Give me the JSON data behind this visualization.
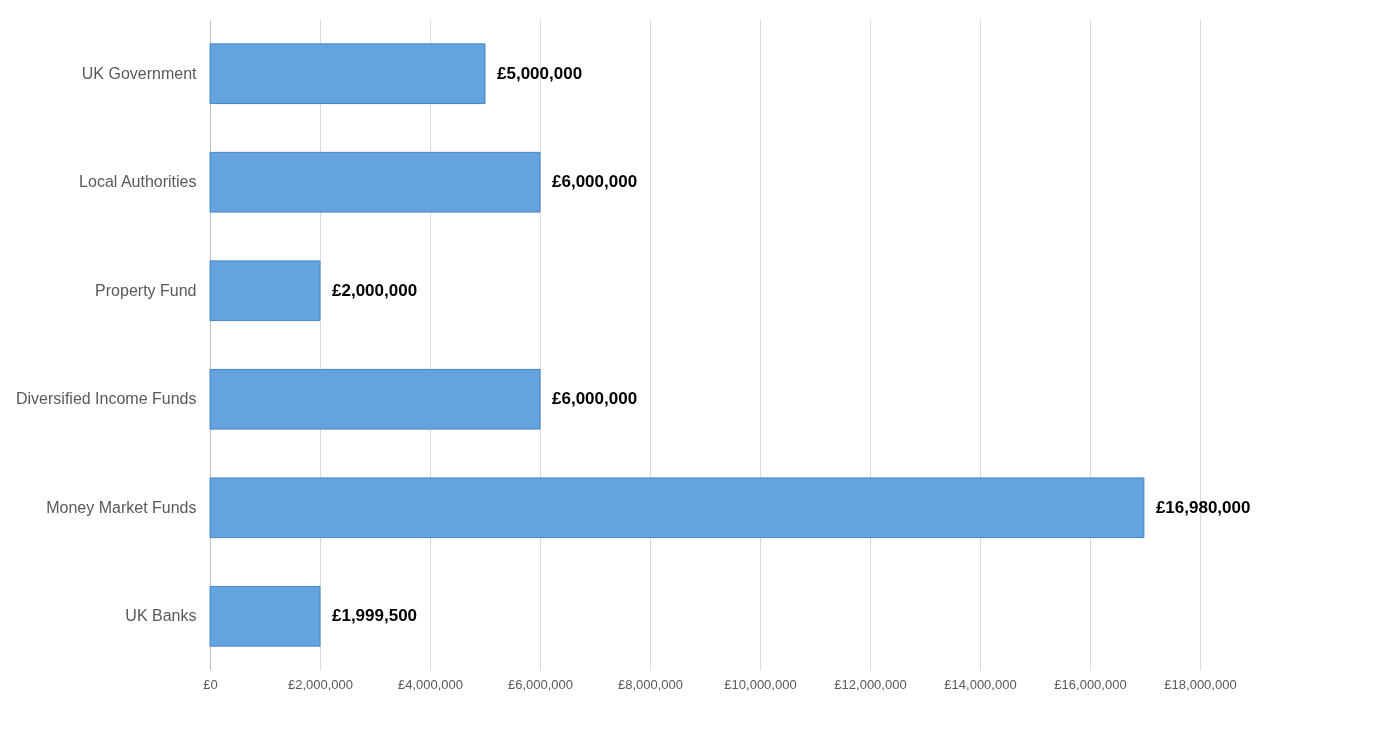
{
  "chart_data": {
    "type": "bar",
    "orientation": "horizontal",
    "categories": [
      "UK Government",
      "Local Authorities",
      "Property Fund",
      "Diversified Income Funds",
      "Money Market Funds",
      "UK Banks"
    ],
    "values": [
      5000000,
      6000000,
      2000000,
      6000000,
      16980000,
      1999500
    ],
    "value_labels": [
      "£5,000,000",
      "£6,000,000",
      "£2,000,000",
      "£6,000,000",
      "£16,980,000",
      "£1,999,500"
    ],
    "color": "#62a3e0",
    "xlim": [
      0,
      18000000
    ],
    "xticks": [
      {
        "value": 0,
        "label": "£0"
      },
      {
        "value": 2000000,
        "label": "£2,000,000"
      },
      {
        "value": 4000000,
        "label": "£4,000,000"
      },
      {
        "value": 6000000,
        "label": "£6,000,000"
      },
      {
        "value": 8000000,
        "label": "£8,000,000"
      },
      {
        "value": 10000000,
        "label": "£10,000,000"
      },
      {
        "value": 12000000,
        "label": "£12,000,000"
      },
      {
        "value": 14000000,
        "label": "£14,000,000"
      },
      {
        "value": 16000000,
        "label": "£16,000,000"
      },
      {
        "value": 18000000,
        "label": "£18,000,000"
      }
    ],
    "grid": "x"
  }
}
